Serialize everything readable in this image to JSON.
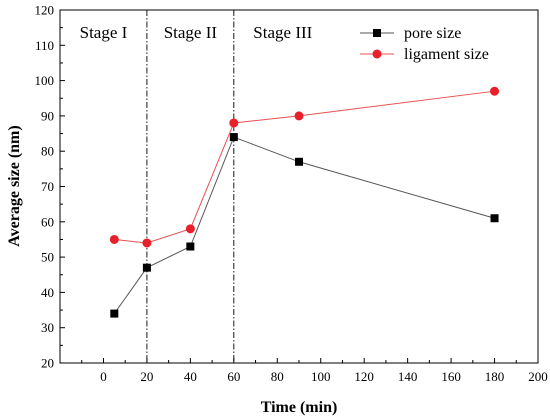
{
  "chart_data": {
    "type": "line",
    "xlabel": "Time (min)",
    "ylabel": "Average size (nm)",
    "xlim": [
      -20,
      200
    ],
    "ylim": [
      20,
      120
    ],
    "xticks": [
      0,
      20,
      40,
      60,
      80,
      100,
      120,
      140,
      160,
      180,
      200
    ],
    "yticks": [
      20,
      30,
      40,
      50,
      60,
      70,
      80,
      90,
      100,
      110,
      120
    ],
    "grid": false,
    "legend_position": "top-right",
    "stage_dividers": [
      20,
      60
    ],
    "stages": [
      {
        "label": "Stage I",
        "x_from": -20,
        "x_to": 20
      },
      {
        "label": "Stage II",
        "x_from": 20,
        "x_to": 60
      },
      {
        "label": "Stage III",
        "x_from": 60,
        "x_to": 200
      }
    ],
    "series": [
      {
        "name": "pore size",
        "color": "#000000",
        "line_color": "#555555",
        "marker": "square",
        "x": [
          5,
          20,
          40,
          60,
          90,
          180
        ],
        "y": [
          34,
          47,
          53,
          84,
          77,
          61
        ]
      },
      {
        "name": "ligament size",
        "color": "#e8202a",
        "line_color": "#e85050",
        "marker": "circle",
        "x": [
          5,
          20,
          40,
          60,
          90,
          180
        ],
        "y": [
          55,
          54,
          58,
          88,
          90,
          97
        ]
      }
    ]
  }
}
